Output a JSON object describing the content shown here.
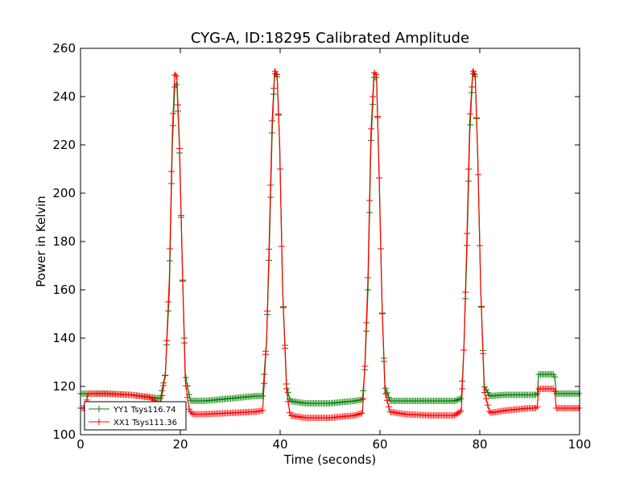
{
  "chart_data": {
    "type": "line",
    "title": "CYG-A, ID:18295 Calibrated Amplitude",
    "xlabel": "Time (seconds)",
    "ylabel": "Power in Kelvin",
    "xlim": [
      0,
      100
    ],
    "ylim": [
      100,
      260
    ],
    "xticks": [
      0,
      20,
      40,
      60,
      80,
      100
    ],
    "yticks": [
      100,
      120,
      140,
      160,
      180,
      200,
      220,
      240,
      260
    ],
    "grid": false,
    "legend_position": "lower-left",
    "marker": "plus",
    "series": [
      {
        "name": "YY1 Tsys116.74",
        "color": "#008000",
        "points": [
          [
            0,
            117
          ],
          [
            5,
            117
          ],
          [
            10,
            116.5
          ],
          [
            14,
            115.5
          ],
          [
            16,
            115
          ],
          [
            17,
            125
          ],
          [
            17.8,
            160
          ],
          [
            18.4,
            220
          ],
          [
            18.9,
            245
          ],
          [
            19.3,
            245
          ],
          [
            19.8,
            220
          ],
          [
            20.4,
            170
          ],
          [
            21,
            125
          ],
          [
            22,
            114
          ],
          [
            25,
            114
          ],
          [
            30,
            115
          ],
          [
            35,
            116
          ],
          [
            36.5,
            116
          ],
          [
            37.3,
            140
          ],
          [
            37.8,
            175
          ],
          [
            38.4,
            225
          ],
          [
            38.9,
            250
          ],
          [
            39.4,
            248
          ],
          [
            39.9,
            220
          ],
          [
            40.5,
            160
          ],
          [
            41.3,
            120
          ],
          [
            42,
            114
          ],
          [
            45,
            113
          ],
          [
            50,
            113
          ],
          [
            55,
            114
          ],
          [
            56.5,
            114.5
          ],
          [
            57,
            128
          ],
          [
            57.6,
            160
          ],
          [
            58.2,
            220
          ],
          [
            58.8,
            248
          ],
          [
            59.3,
            248
          ],
          [
            59.8,
            210
          ],
          [
            60.4,
            155
          ],
          [
            61,
            120
          ],
          [
            62,
            114
          ],
          [
            65,
            114
          ],
          [
            70,
            114
          ],
          [
            75,
            114
          ],
          [
            76.3,
            115
          ],
          [
            76.8,
            135
          ],
          [
            77.4,
            175
          ],
          [
            78,
            225
          ],
          [
            78.6,
            250
          ],
          [
            79.1,
            248
          ],
          [
            79.6,
            215
          ],
          [
            80.2,
            160
          ],
          [
            80.9,
            120
          ],
          [
            82,
            116
          ],
          [
            85,
            116.5
          ],
          [
            90,
            116.5
          ],
          [
            91.5,
            116.5
          ],
          [
            91.8,
            125
          ],
          [
            95,
            125
          ],
          [
            95.3,
            117
          ],
          [
            100,
            117
          ]
        ]
      },
      {
        "name": "XX1 Tsys111.36",
        "color": "#ff0000",
        "points": [
          [
            0,
            111
          ],
          [
            1,
            111
          ],
          [
            1.5,
            117
          ],
          [
            5,
            117
          ],
          [
            10,
            116.5
          ],
          [
            14,
            115.5
          ],
          [
            16,
            112
          ],
          [
            17,
            125
          ],
          [
            17.8,
            165
          ],
          [
            18.4,
            225
          ],
          [
            18.9,
            250
          ],
          [
            19.3,
            248
          ],
          [
            19.8,
            222
          ],
          [
            20.4,
            170
          ],
          [
            21,
            122
          ],
          [
            21.8,
            110
          ],
          [
            22.5,
            108.5
          ],
          [
            25,
            108.5
          ],
          [
            30,
            109
          ],
          [
            35,
            109.5
          ],
          [
            36.5,
            110
          ],
          [
            37.3,
            140
          ],
          [
            37.8,
            180
          ],
          [
            38.4,
            230
          ],
          [
            38.9,
            251
          ],
          [
            39.4,
            249
          ],
          [
            39.9,
            220
          ],
          [
            40.5,
            160
          ],
          [
            41.3,
            118
          ],
          [
            42,
            108
          ],
          [
            45,
            107
          ],
          [
            50,
            107
          ],
          [
            55,
            108
          ],
          [
            56.5,
            109
          ],
          [
            57,
            130
          ],
          [
            57.6,
            165
          ],
          [
            58.2,
            225
          ],
          [
            58.8,
            250
          ],
          [
            59.3,
            249
          ],
          [
            59.8,
            210
          ],
          [
            60.4,
            155
          ],
          [
            61,
            118
          ],
          [
            62,
            109.5
          ],
          [
            65,
            108.5
          ],
          [
            70,
            108
          ],
          [
            75,
            108
          ],
          [
            76.3,
            110
          ],
          [
            76.8,
            135
          ],
          [
            77.4,
            180
          ],
          [
            78,
            230
          ],
          [
            78.6,
            251
          ],
          [
            79.1,
            249
          ],
          [
            79.6,
            215
          ],
          [
            80.2,
            160
          ],
          [
            80.9,
            118
          ],
          [
            82,
            109
          ],
          [
            85,
            110
          ],
          [
            90,
            111
          ],
          [
            91.5,
            111
          ],
          [
            91.8,
            119
          ],
          [
            95,
            119
          ],
          [
            95.3,
            111
          ],
          [
            100,
            111
          ]
        ]
      }
    ]
  }
}
